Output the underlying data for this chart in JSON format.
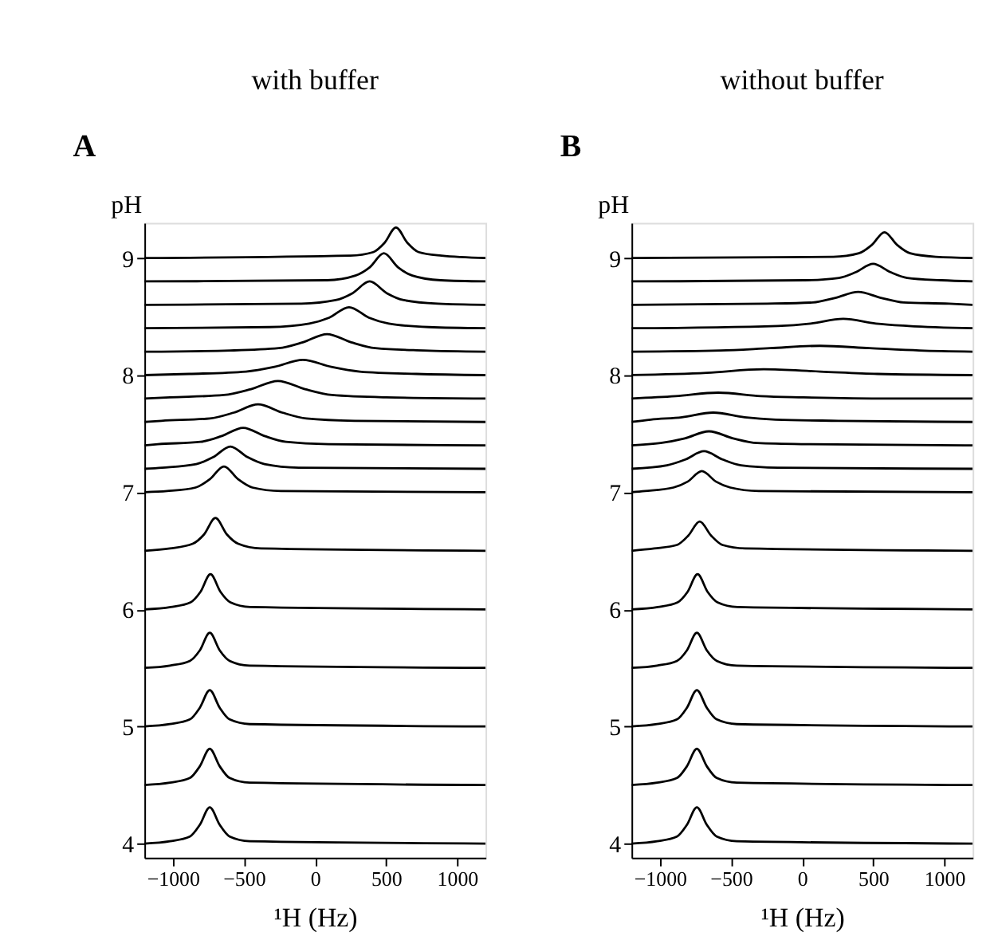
{
  "chart_data": [
    {
      "type": "line",
      "title": "with buffer",
      "annotations": [
        "A"
      ],
      "xlabel": "¹H (Hz)",
      "ylabel": "pH",
      "xlim": [
        -1200,
        1200
      ],
      "xticks": [
        -1000,
        -500,
        0,
        500,
        1000
      ],
      "ylim": [
        3.88,
        9.3
      ],
      "yticks": [
        4,
        5,
        6,
        7,
        8,
        9
      ],
      "grid": false,
      "legend": false,
      "marker": "none",
      "line_style": "solid",
      "series": [
        {
          "color": "#000000",
          "x": [
            -1200,
            -1020,
            -880,
            -810,
            -740,
            -670,
            -600,
            -460,
            1200
          ],
          "values": [
            4,
            4.02,
            4.06,
            4.16,
            4.31,
            4.16,
            4.06,
            4.02,
            4
          ]
        },
        {
          "color": "#000000",
          "x": [
            -1200,
            -1020,
            -880,
            -810,
            -740,
            -670,
            -600,
            -460,
            1200
          ],
          "values": [
            4.5,
            4.52,
            4.56,
            4.66,
            4.81,
            4.66,
            4.56,
            4.52,
            4.5
          ]
        },
        {
          "color": "#000000",
          "x": [
            -1200,
            -1020,
            -880,
            -810,
            -740,
            -670,
            -600,
            -460,
            1200
          ],
          "values": [
            5,
            5.02,
            5.06,
            5.16,
            5.31,
            5.16,
            5.06,
            5.02,
            5
          ]
        },
        {
          "color": "#000000",
          "x": [
            -1200,
            -1020,
            -880,
            -810,
            -740,
            -670,
            -600,
            -460,
            1200
          ],
          "values": [
            5.5,
            5.52,
            5.56,
            5.65,
            5.8,
            5.65,
            5.56,
            5.52,
            5.5
          ]
        },
        {
          "color": "#000000",
          "x": [
            -1200,
            -1015,
            -875,
            -805,
            -735,
            -665,
            -595,
            -455,
            1200
          ],
          "values": [
            6,
            6.02,
            6.06,
            6.15,
            6.3,
            6.15,
            6.06,
            6.02,
            6
          ]
        },
        {
          "color": "#000000",
          "x": [
            -1200,
            -1020,
            -860,
            -780,
            -700,
            -620,
            -540,
            -380,
            1200
          ],
          "values": [
            6.5,
            6.52,
            6.56,
            6.64,
            6.78,
            6.64,
            6.56,
            6.52,
            6.5
          ]
        },
        {
          "color": "#000000",
          "x": [
            -1200,
            -1040,
            -840,
            -740,
            -640,
            -540,
            -440,
            -240,
            1200
          ],
          "values": [
            7,
            7.01,
            7.04,
            7.11,
            7.22,
            7.11,
            7.04,
            7.01,
            7
          ]
        },
        {
          "color": "#000000",
          "x": [
            -1200,
            -1075,
            -835,
            -715,
            -595,
            -475,
            -355,
            -115,
            1200
          ],
          "values": [
            7.2,
            7.21,
            7.24,
            7.3,
            7.39,
            7.3,
            7.24,
            7.21,
            7.2
          ]
        },
        {
          "color": "#000000",
          "x": [
            -1200,
            -1105,
            -805,
            -655,
            -505,
            -355,
            -205,
            95,
            1200
          ],
          "values": [
            7.4,
            7.41,
            7.43,
            7.48,
            7.55,
            7.48,
            7.43,
            7.41,
            7.4
          ]
        },
        {
          "color": "#000000",
          "x": [
            -1200,
            -1080,
            -740,
            -570,
            -400,
            -230,
            -60,
            280,
            1200
          ],
          "values": [
            7.6,
            7.61,
            7.63,
            7.68,
            7.75,
            7.68,
            7.63,
            7.61,
            7.6
          ]
        },
        {
          "color": "#000000",
          "x": [
            -1200,
            -1020,
            -640,
            -450,
            -260,
            -70,
            120,
            500,
            1200
          ],
          "values": [
            7.8,
            7.81,
            7.83,
            7.88,
            7.95,
            7.88,
            7.83,
            7.81,
            7.8
          ]
        },
        {
          "color": "#000000",
          "x": [
            -1200,
            -885,
            -485,
            -285,
            -85,
            115,
            315,
            715,
            1200
          ],
          "values": [
            8,
            8.01,
            8.03,
            8.07,
            8.13,
            8.07,
            8.03,
            8.01,
            8
          ]
        },
        {
          "color": "#000000",
          "x": [
            -1200,
            -595,
            -255,
            -85,
            85,
            255,
            425,
            765,
            1200
          ],
          "values": [
            8.2,
            8.21,
            8.23,
            8.28,
            8.35,
            8.28,
            8.23,
            8.21,
            8.2
          ]
        },
        {
          "color": "#000000",
          "x": [
            -1200,
            -320,
            -40,
            100,
            240,
            380,
            520,
            800,
            1200
          ],
          "values": [
            8.4,
            8.41,
            8.44,
            8.49,
            8.58,
            8.49,
            8.44,
            8.41,
            8.4
          ]
        },
        {
          "color": "#000000",
          "x": [
            -1200,
            -95,
            145,
            265,
            385,
            505,
            625,
            865,
            1200
          ],
          "values": [
            8.6,
            8.61,
            8.64,
            8.7,
            8.8,
            8.7,
            8.64,
            8.61,
            8.6
          ]
        },
        {
          "color": "#000000",
          "x": [
            -1200,
            85,
            285,
            385,
            485,
            585,
            685,
            885,
            1200
          ],
          "values": [
            8.8,
            8.81,
            8.85,
            8.92,
            9.04,
            8.92,
            8.85,
            8.81,
            8.8
          ]
        },
        {
          "color": "#000000",
          "x": [
            -1200,
            250,
            410,
            490,
            570,
            650,
            730,
            890,
            1200
          ],
          "values": [
            9,
            9.02,
            9.05,
            9.13,
            9.26,
            9.13,
            9.05,
            9.02,
            9
          ]
        }
      ]
    },
    {
      "type": "line",
      "title": "without buffer",
      "annotations": [
        "B"
      ],
      "xlabel": "¹H (Hz)",
      "ylabel": "pH",
      "xlim": [
        -1200,
        1200
      ],
      "xticks": [
        -1000,
        -500,
        0,
        500,
        1000
      ],
      "ylim": [
        3.88,
        9.3
      ],
      "yticks": [
        4,
        5,
        6,
        7,
        8,
        9
      ],
      "grid": false,
      "legend": false,
      "marker": "none",
      "line_style": "solid",
      "series": [
        {
          "color": "#000000",
          "x": [
            -1200,
            -1020,
            -880,
            -810,
            -740,
            -670,
            -600,
            -460,
            1200
          ],
          "values": [
            4,
            4.02,
            4.06,
            4.16,
            4.31,
            4.16,
            4.06,
            4.02,
            4
          ]
        },
        {
          "color": "#000000",
          "x": [
            -1200,
            -1020,
            -880,
            -810,
            -740,
            -670,
            -600,
            -460,
            1200
          ],
          "values": [
            4.5,
            4.52,
            4.56,
            4.66,
            4.81,
            4.66,
            4.56,
            4.52,
            4.5
          ]
        },
        {
          "color": "#000000",
          "x": [
            -1200,
            -1020,
            -880,
            -810,
            -740,
            -670,
            -600,
            -460,
            1200
          ],
          "values": [
            5,
            5.02,
            5.06,
            5.16,
            5.31,
            5.16,
            5.06,
            5.02,
            5
          ]
        },
        {
          "color": "#000000",
          "x": [
            -1200,
            -1020,
            -880,
            -810,
            -740,
            -670,
            -600,
            -460,
            1200
          ],
          "values": [
            5.5,
            5.52,
            5.56,
            5.65,
            5.8,
            5.65,
            5.56,
            5.52,
            5.5
          ]
        },
        {
          "color": "#000000",
          "x": [
            -1200,
            -1015,
            -875,
            -805,
            -735,
            -665,
            -595,
            -455,
            1200
          ],
          "values": [
            6,
            6.02,
            6.06,
            6.15,
            6.3,
            6.15,
            6.06,
            6.02,
            6
          ]
        },
        {
          "color": "#000000",
          "x": [
            -1200,
            -1040,
            -880,
            -800,
            -720,
            -640,
            -560,
            -400,
            1200
          ],
          "values": [
            6.5,
            6.52,
            6.55,
            6.63,
            6.75,
            6.63,
            6.55,
            6.52,
            6.5
          ]
        },
        {
          "color": "#000000",
          "x": [
            -1200,
            -1105,
            -905,
            -805,
            -705,
            -605,
            -505,
            -305,
            1200
          ],
          "values": [
            7,
            7.01,
            7.04,
            7.09,
            7.18,
            7.09,
            7.04,
            7.01,
            7
          ]
        },
        {
          "color": "#000000",
          "x": [
            -1200,
            -950,
            -820,
            -690,
            -560,
            -430,
            -170,
            1200
          ],
          "values": [
            7.2,
            7.23,
            7.28,
            7.35,
            7.28,
            7.23,
            7.21,
            7.2
          ]
        },
        {
          "color": "#000000",
          "x": [
            -1200,
            -995,
            -825,
            -655,
            -485,
            -315,
            25,
            1200
          ],
          "values": [
            7.4,
            7.42,
            7.46,
            7.52,
            7.46,
            7.42,
            7.41,
            7.4
          ]
        },
        {
          "color": "#000000",
          "x": [
            -1200,
            -1065,
            -845,
            -625,
            -405,
            -185,
            255,
            1200
          ],
          "values": [
            7.6,
            7.62,
            7.64,
            7.68,
            7.64,
            7.62,
            7.61,
            7.6
          ]
        },
        {
          "color": "#000000",
          "x": [
            -1200,
            -890,
            -590,
            -290,
            10,
            610,
            1200
          ],
          "values": [
            7.8,
            7.82,
            7.85,
            7.82,
            7.81,
            7.8,
            7.8
          ]
        },
        {
          "color": "#000000",
          "x": [
            -1200,
            -670,
            -270,
            130,
            530,
            1200
          ],
          "values": [
            8,
            8.02,
            8.05,
            8.03,
            8.01,
            8
          ]
        },
        {
          "color": "#000000",
          "x": [
            -1200,
            -575,
            -225,
            125,
            475,
            825,
            1200
          ],
          "values": [
            8.2,
            8.21,
            8.23,
            8.25,
            8.23,
            8.21,
            8.2
          ]
        },
        {
          "color": "#000000",
          "x": [
            -1200,
            -170,
            60,
            290,
            520,
            750,
            1200
          ],
          "values": [
            8.4,
            8.42,
            8.44,
            8.48,
            8.44,
            8.42,
            8.4
          ]
        },
        {
          "color": "#000000",
          "x": [
            -1200,
            -245,
            75,
            235,
            395,
            555,
            715,
            1035,
            1200
          ],
          "values": [
            8.6,
            8.61,
            8.62,
            8.66,
            8.71,
            8.66,
            8.62,
            8.61,
            8.6
          ]
        },
        {
          "color": "#000000",
          "x": [
            -1200,
            20,
            260,
            380,
            500,
            620,
            740,
            980,
            1200
          ],
          "values": [
            8.8,
            8.81,
            8.83,
            8.88,
            8.95,
            8.88,
            8.83,
            8.81,
            8.8
          ]
        },
        {
          "color": "#000000",
          "x": [
            -1200,
            220,
            400,
            490,
            580,
            670,
            760,
            940,
            1200
          ],
          "values": [
            9,
            9.01,
            9.04,
            9.11,
            9.22,
            9.11,
            9.04,
            9.01,
            9
          ]
        }
      ]
    }
  ]
}
